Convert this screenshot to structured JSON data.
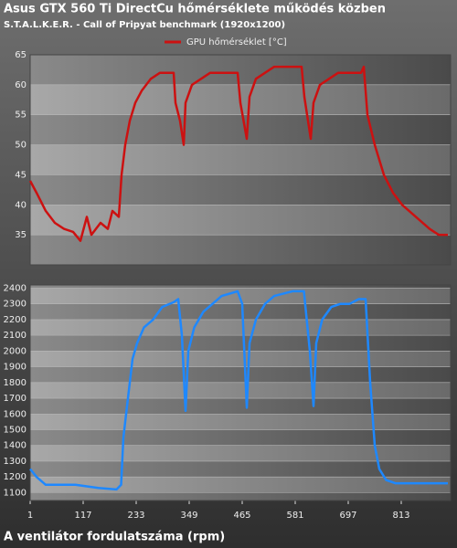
{
  "chart_data": [
    {
      "type": "line",
      "title": "Asus GTX 560 Ti DirectCu hőmérséklete működés közben",
      "subtitle": "S.T.A.L.K.E.R. - Call of Pripyat benchmark (1920x1200)",
      "x": [
        1,
        15,
        35,
        55,
        75,
        95,
        111,
        125,
        135,
        155,
        171,
        181,
        195,
        201,
        209,
        219,
        231,
        245,
        265,
        285,
        315,
        319,
        329,
        337,
        341,
        355,
        375,
        395,
        455,
        461,
        475,
        481,
        495,
        515,
        535,
        595,
        601,
        615,
        621,
        635,
        655,
        675,
        725,
        731,
        739,
        755,
        775,
        795,
        815,
        845,
        875,
        895,
        915
      ],
      "series": [
        {
          "name": "GPU hőmérséklet [°C]",
          "color": "#cc1111",
          "values": [
            44,
            42,
            39,
            37,
            36,
            35.5,
            34,
            38,
            35,
            37,
            36,
            39,
            38,
            45,
            50,
            54,
            57,
            59,
            61,
            62,
            62,
            57,
            54,
            50,
            57,
            60,
            61,
            62,
            62,
            57,
            51,
            58,
            61,
            62,
            63,
            63,
            58,
            51,
            57,
            60,
            61,
            62,
            62,
            63,
            55,
            50,
            45,
            42,
            40,
            38,
            36,
            35,
            35
          ]
        }
      ],
      "xlim": [
        1,
        921
      ],
      "ylim": [
        30,
        65
      ],
      "yticks": [
        35,
        40,
        45,
        50,
        55,
        60,
        65
      ],
      "grid": true,
      "legend": "top"
    },
    {
      "type": "line",
      "title": "A ventilátor fordulatszáma (rpm)",
      "x": [
        1,
        15,
        35,
        100,
        150,
        190,
        200,
        205,
        215,
        225,
        235,
        250,
        270,
        290,
        315,
        325,
        333,
        341,
        347,
        360,
        380,
        400,
        420,
        455,
        465,
        475,
        481,
        495,
        515,
        535,
        575,
        600,
        613,
        621,
        627,
        640,
        660,
        680,
        700,
        720,
        735,
        745,
        755,
        765,
        780,
        800,
        900,
        915
      ],
      "series": [
        {
          "color": "#1e88ff",
          "values": [
            1250,
            1200,
            1150,
            1150,
            1130,
            1120,
            1150,
            1450,
            1700,
            1950,
            2050,
            2150,
            2200,
            2280,
            2310,
            2330,
            2100,
            1620,
            2000,
            2150,
            2250,
            2300,
            2350,
            2380,
            2300,
            1640,
            2050,
            2200,
            2300,
            2350,
            2380,
            2380,
            2000,
            1650,
            2050,
            2200,
            2280,
            2300,
            2300,
            2330,
            2330,
            1800,
            1400,
            1250,
            1180,
            1160,
            1160,
            1160
          ]
        }
      ],
      "xlim": [
        1,
        921
      ],
      "ylim": [
        1050,
        2420
      ],
      "xticks": [
        1,
        117,
        233,
        349,
        465,
        581,
        697,
        813
      ],
      "yticks": [
        1100,
        1200,
        1300,
        1400,
        1500,
        1600,
        1700,
        1800,
        1900,
        2000,
        2100,
        2200,
        2300,
        2400
      ],
      "grid": true
    }
  ]
}
